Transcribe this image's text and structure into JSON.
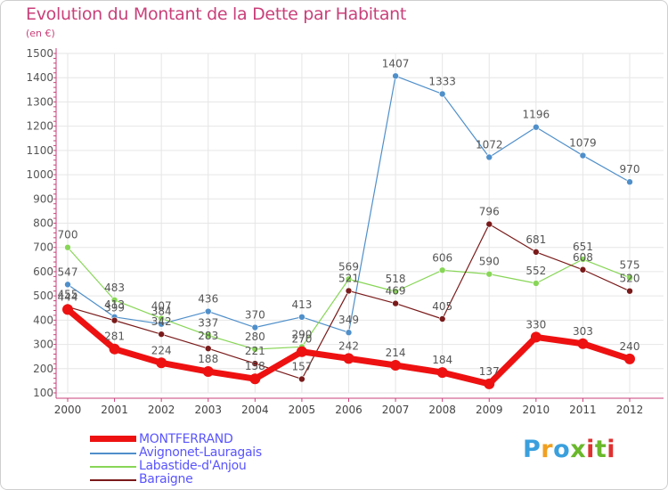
{
  "header": {
    "title": "Evolution du Montant de la Dette par Habitant",
    "subtitle": "(en €)"
  },
  "logo": {
    "text": "Proxiti",
    "colors": [
      "#3aa0dd",
      "#f0a020",
      "#3aa0dd",
      "#6ab82c",
      "#e03030",
      "#6ab82c",
      "#e03030"
    ]
  },
  "colors": {
    "title": "#c9407a",
    "axis": "#c9407a",
    "grid": "#e6e6e6",
    "legend_text": "#5a55ff"
  },
  "chart_data": {
    "type": "line",
    "title": "Evolution du Montant de la Dette par Habitant",
    "ylabel": "(en €)",
    "xlabel": "",
    "x": [
      "2000",
      "2001",
      "2002",
      "2003",
      "2004",
      "2005",
      "2006",
      "2007",
      "2008",
      "2009",
      "2010",
      "2011",
      "2012"
    ],
    "ylim": [
      100,
      1500
    ],
    "yticks": [
      100,
      200,
      300,
      400,
      500,
      600,
      700,
      800,
      900,
      1000,
      1100,
      1200,
      1300,
      1400,
      1500
    ],
    "grid": true,
    "legend_position": "bottom-left",
    "series": [
      {
        "name": "MONTFERRAND",
        "color": "#ee1111",
        "values": [
          444,
          281,
          224,
          188,
          158,
          270,
          242,
          214,
          184,
          137,
          330,
          303,
          240
        ]
      },
      {
        "name": "Avignonet-Lauragais",
        "color": "#4f8fca",
        "values": [
          547,
          413,
          384,
          436,
          370,
          413,
          349,
          1407,
          1333,
          1072,
          1196,
          1079,
          970
        ]
      },
      {
        "name": "Labastide-d'Anjou",
        "color": "#88d657",
        "values": [
          700,
          483,
          407,
          337,
          280,
          290,
          569,
          518,
          606,
          590,
          552,
          651,
          575
        ]
      },
      {
        "name": "Baraigne",
        "color": "#7a1a1a",
        "values": [
          455,
          399,
          342,
          283,
          221,
          157,
          521,
          469,
          405,
          796,
          681,
          608,
          520
        ]
      }
    ]
  }
}
